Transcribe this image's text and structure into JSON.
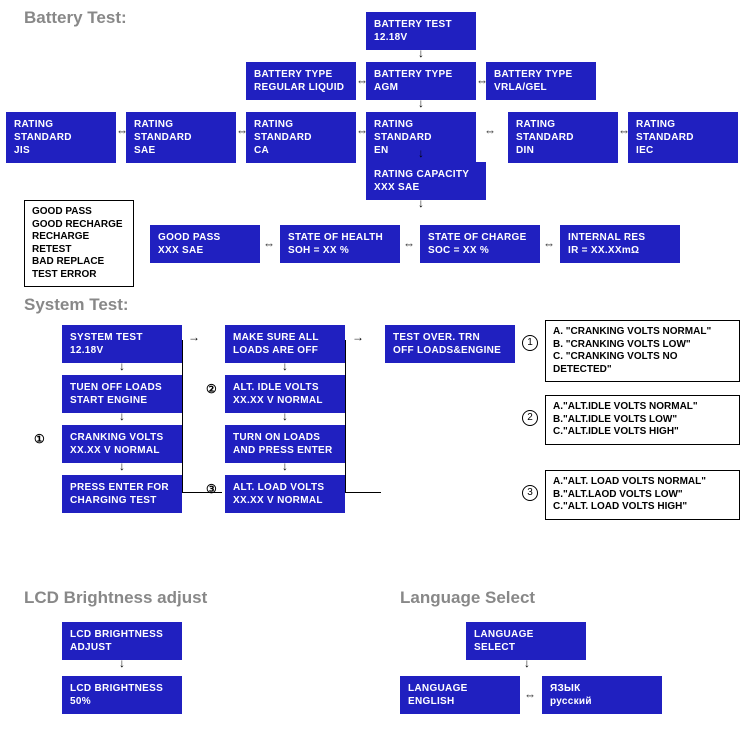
{
  "colors": {
    "box_bg": "#2020c0",
    "box_fg": "#ffffff",
    "title_fg": "#888888",
    "info_border": "#000000",
    "page_bg": "#ffffff"
  },
  "titles": {
    "battery": "Battery Test:",
    "system": "System Test:",
    "lcd": "LCD Brightness adjust",
    "lang": "Language Select"
  },
  "battery": {
    "root": "BATTERY TEST\n12.18V",
    "type_liquid": "BATTERY TYPE\nREGULAR LIQUID",
    "type_agm": "BATTERY TYPE\nAGM",
    "type_vrla": "BATTERY TYPE\nVRLA/GEL",
    "rs_jis": "RATING STANDARD\nJIS",
    "rs_sae": "RATING STANDARD\nSAE",
    "rs_ca": "RATING STANDARD\nCA",
    "rs_en": "RATING STANDARD\nEN",
    "rs_din": "RATING STANDARD\nDIN",
    "rs_iec": "RATING STANDARD\nIEC",
    "capacity": "RATING CAPACITY\nXXX SAE",
    "good": "GOOD PASS\nXXX SAE",
    "soh": "STATE OF HEALTH\nSOH = XX %",
    "soc": "STATE OF CHARGE\nSOC = XX %",
    "ir": "INTERNAL RES\nIR = XX.XXmΩ",
    "results": "GOOD PASS\nGOOD RECHARGE\nRECHARGE RETEST\nBAD REPLACE\nTEST ERROR"
  },
  "system": {
    "root": "SYSTEM TEST\n12.18V",
    "turnoff": "TUEN OFF LOADS\nSTART ENGINE",
    "cranking": "CRANKING VOLTS\nXX.XX V NORMAL",
    "press": "PRESS ENTER FOR\nCHARGING TEST",
    "makesure": "MAKE SURE ALL\nLOADS ARE OFF",
    "altidle": "ALT. IDLE VOLTS\nXX.XX V NORMAL",
    "turnon": "TURN ON LOADS\nAND PRESS ENTER",
    "altload": "ALT. LOAD VOLTS\nXX.XX V NORMAL",
    "testover": "TEST OVER. TRN\nOFF LOADS&ENGINE",
    "note1": "A. \"CRANKING VOLTS NORMAL\"\nB. \"CRANKING VOLTS LOW\"\nC. \"CRANKING VOLTS NO DETECTED\"",
    "note2": "A.\"ALT.IDLE VOLTS NORMAL\"\nB.\"ALT.IDLE VOLTS LOW\"\nC.\"ALT.IDLE VOLTS HIGH\"",
    "note3": "A.\"ALT. LOAD VOLTS NORMAL\"\nB.\"ALT.LAOD VOLTS LOW\"\nC.\"ALT. LOAD VOLTS HIGH\""
  },
  "lcd": {
    "adjust": "LCD BRIGHTNESS\nADJUST",
    "value": "LCD BRIGHTNESS\n50%"
  },
  "lang": {
    "select": "LANGUAGE\nSELECT",
    "english": "LANGUAGE\nENGLISH",
    "russian": "ЯЗЫК\nрусский"
  },
  "markers": {
    "m1": "①",
    "m2": "②",
    "m3": "③",
    "c1": "1",
    "c2": "2",
    "c3": "3"
  }
}
